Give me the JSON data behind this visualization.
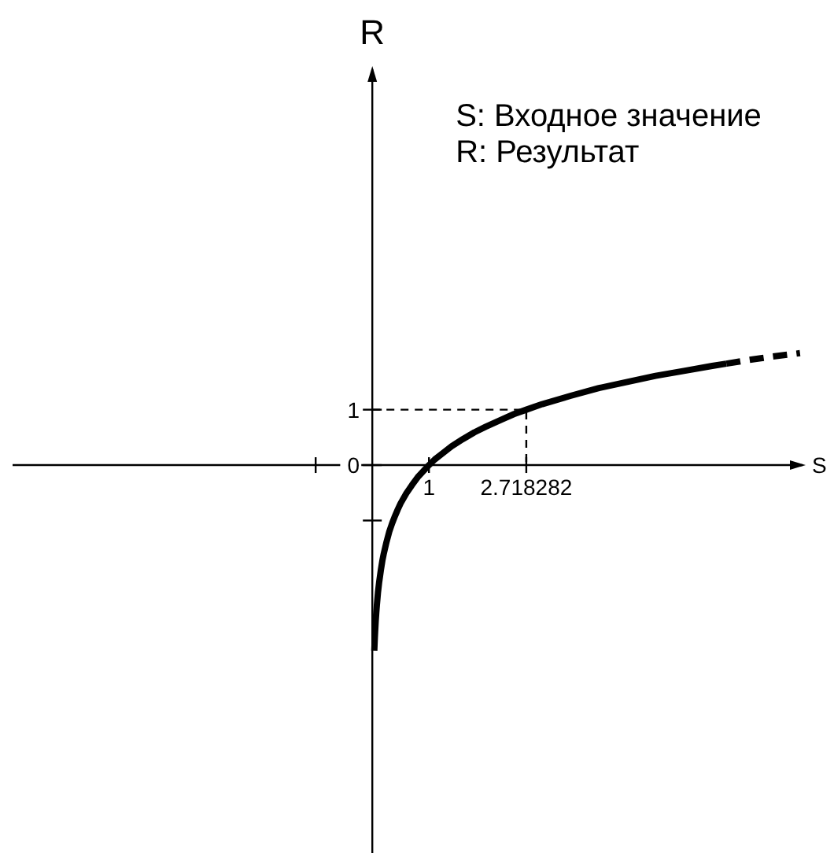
{
  "chart_data": {
    "type": "line",
    "xlabel": "S",
    "ylabel": "R",
    "annotations": [
      "S: Входное значение",
      "R: Результат"
    ],
    "xlim": [
      -6.35,
      7.65
    ],
    "ylim": [
      -7,
      7.2
    ],
    "xticks": [
      {
        "value": -1,
        "label": null
      },
      1,
      2.718282
    ],
    "yticks": [
      {
        "value": -1,
        "label": null
      },
      0,
      1
    ],
    "series": [
      {
        "color": "#000000",
        "line_style": "solid",
        "x": [
          0.035,
          0.04,
          0.045,
          0.05,
          0.06,
          0.07,
          0.08,
          0.1,
          0.12,
          0.15,
          0.18,
          0.2,
          0.25,
          0.3,
          0.35,
          0.4,
          0.45,
          0.5,
          0.6,
          0.7,
          0.8,
          0.9,
          1,
          1.1,
          1.2,
          1.4,
          1.6,
          1.8,
          2,
          2.3,
          2.5,
          2.718282,
          3,
          3.5,
          4,
          4.5,
          5,
          5.5,
          6,
          6.25
        ],
        "values": [
          -3.35,
          -3.22,
          -3.1,
          -3.0,
          -2.81,
          -2.66,
          -2.53,
          -2.3,
          -2.12,
          -1.9,
          -1.71,
          -1.61,
          -1.39,
          -1.2,
          -1.05,
          -0.92,
          -0.8,
          -0.69,
          -0.51,
          -0.36,
          -0.22,
          -0.11,
          0,
          0.1,
          0.18,
          0.34,
          0.47,
          0.59,
          0.69,
          0.83,
          0.92,
          1,
          1.1,
          1.25,
          1.39,
          1.5,
          1.61,
          1.7,
          1.79,
          1.83
        ]
      },
      {
        "color": "#000000",
        "line_style": "dashed",
        "x": [
          6.25,
          6.6,
          7.0,
          7.55
        ],
        "values": [
          1.83,
          1.89,
          1.95,
          2.02
        ]
      },
      {
        "color": "#000000",
        "line_style": "dashed",
        "x": [
          0,
          2.718282,
          2.718282
        ],
        "values": [
          1,
          1,
          0
        ]
      }
    ]
  }
}
